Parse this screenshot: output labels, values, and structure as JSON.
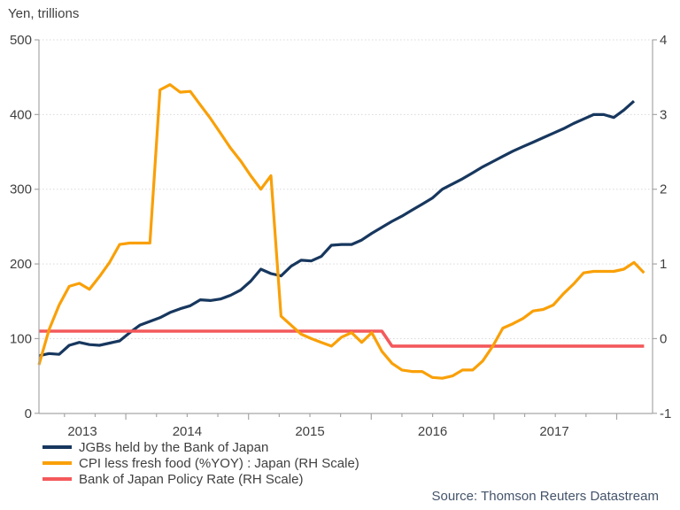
{
  "source_credit": "Source: Thomson Reuters Datastream",
  "colors": {
    "background": "#FFFFFF",
    "axis": "#A6A6A6",
    "grid": "#D9D9D9",
    "tick_text": "#404040",
    "source_text": "#44546A"
  },
  "chart_data": {
    "type": "line",
    "title": "",
    "grid": "horizontal-dotted",
    "legend_position": "bottom-left",
    "y_axis_left": {
      "unit": "Yen, trillions",
      "range": [
        0,
        500
      ],
      "ticks": [
        0,
        100,
        200,
        300,
        400,
        500
      ]
    },
    "y_axis_right": {
      "range": [
        -1,
        4
      ],
      "ticks": [
        -1,
        0,
        1,
        2,
        3,
        4
      ]
    },
    "x_axis": {
      "tick_labels": [
        "2013",
        "2014",
        "2015",
        "2016",
        "2017"
      ]
    },
    "draw_order": [
      0,
      2,
      1
    ],
    "series": [
      {
        "name": "JGBs held by the Bank of Japan",
        "axis": "left",
        "color": "#17375E",
        "width": 3.2,
        "values": [
          77,
          80,
          79,
          91,
          95,
          92,
          91,
          94,
          97,
          108,
          118,
          123,
          128,
          135,
          140,
          144,
          152,
          151,
          153,
          158,
          165,
          177,
          193,
          187,
          184,
          197,
          205,
          204,
          210,
          225,
          226,
          226,
          232,
          241,
          249,
          257,
          264,
          272,
          280,
          288,
          300,
          307,
          314,
          322,
          330,
          337,
          344,
          351,
          357,
          363,
          369,
          375,
          381,
          388,
          394,
          400,
          400,
          396,
          406,
          418
        ]
      },
      {
        "name": "CPI less fresh food (%YOY) : Japan (RH Scale)",
        "axis": "right",
        "color": "#F9A008",
        "width": 3.2,
        "values": [
          -0.35,
          0.12,
          0.45,
          0.7,
          0.74,
          0.66,
          0.83,
          1.02,
          1.26,
          1.28,
          1.28,
          1.28,
          3.33,
          3.4,
          3.3,
          3.31,
          3.13,
          2.95,
          2.75,
          2.55,
          2.38,
          2.18,
          2.0,
          2.18,
          0.3,
          0.18,
          0.06,
          0.0,
          -0.05,
          -0.1,
          0.02,
          0.08,
          -0.05,
          0.08,
          -0.17,
          -0.33,
          -0.42,
          -0.44,
          -0.44,
          -0.52,
          -0.53,
          -0.5,
          -0.42,
          -0.42,
          -0.3,
          -0.1,
          0.14,
          0.2,
          0.27,
          0.37,
          0.39,
          0.45,
          0.6,
          0.73,
          0.88,
          0.9,
          0.9,
          0.9,
          0.93,
          1.02,
          0.88
        ]
      },
      {
        "name": "Bank of Japan Policy Rate (RH Scale)",
        "axis": "right",
        "color": "#F4595B",
        "width": 3.6,
        "values": [
          0.1,
          0.1,
          0.1,
          0.1,
          0.1,
          0.1,
          0.1,
          0.1,
          0.1,
          0.1,
          0.1,
          0.1,
          0.1,
          0.1,
          0.1,
          0.1,
          0.1,
          0.1,
          0.1,
          0.1,
          0.1,
          0.1,
          0.1,
          0.1,
          0.1,
          0.1,
          0.1,
          0.1,
          0.1,
          0.1,
          0.1,
          0.1,
          0.1,
          0.1,
          0.1,
          -0.1,
          -0.1,
          -0.1,
          -0.1,
          -0.1,
          -0.1,
          -0.1,
          -0.1,
          -0.1,
          -0.1,
          -0.1,
          -0.1,
          -0.1,
          -0.1,
          -0.1,
          -0.1,
          -0.1,
          -0.1,
          -0.1,
          -0.1,
          -0.1,
          -0.1,
          -0.1,
          -0.1,
          -0.1,
          -0.1
        ]
      }
    ]
  }
}
